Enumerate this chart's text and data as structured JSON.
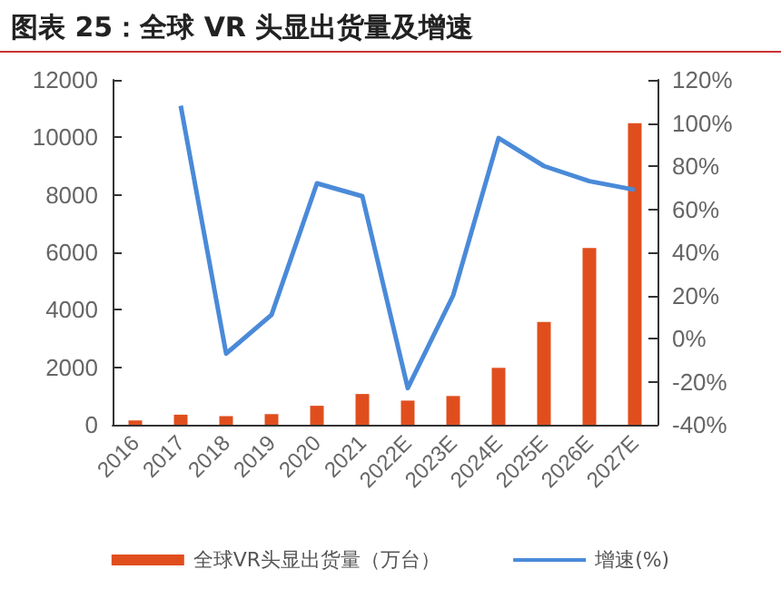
{
  "chart_data": {
    "type": "bar",
    "title": "图表 25：全球 VR 头显出货量及增速",
    "categories": [
      "2016",
      "2017",
      "2018",
      "2019",
      "2020",
      "2021",
      "2022E",
      "2023E",
      "2024E",
      "2025E",
      "2026E",
      "2027E"
    ],
    "series": [
      {
        "name": "全球VR头显出货量（万台）",
        "color": "#e04e1e",
        "values": [
          150,
          350,
          300,
          370,
          660,
          1070,
          840,
          1000,
          1980,
          3580,
          6150,
          10490
        ]
      },
      {
        "name": "增速(%)",
        "type": "line",
        "axis": "y2",
        "color": "#4a8ad8",
        "marker": "none",
        "values": [
          null,
          108,
          -7,
          11,
          72,
          66,
          -23,
          20,
          93,
          80,
          73,
          69
        ]
      }
    ],
    "ylim": [
      0,
      12000
    ],
    "yticks": [
      0,
      2000,
      4000,
      6000,
      8000,
      10000,
      12000
    ],
    "y2lim": [
      -40,
      120
    ],
    "y2ticks": [
      {
        "value": -40,
        "label": "-40%"
      },
      {
        "value": -20,
        "label": "-20%"
      },
      {
        "value": 0,
        "label": "0%"
      },
      {
        "value": 20,
        "label": "20%"
      },
      {
        "value": 40,
        "label": "40%"
      },
      {
        "value": 60,
        "label": "60%"
      },
      {
        "value": 80,
        "label": "80%"
      },
      {
        "value": 100,
        "label": "100%"
      },
      {
        "value": 120,
        "label": "120%"
      }
    ],
    "grid": false,
    "legend": "bottom"
  }
}
